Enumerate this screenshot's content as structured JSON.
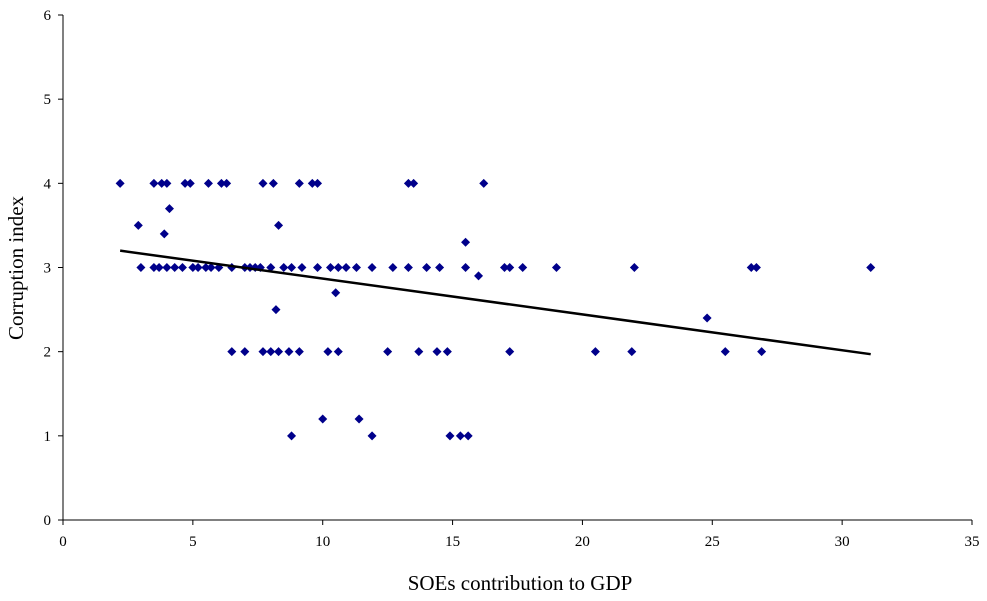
{
  "chart_data": {
    "type": "scatter",
    "xlabel": "SOEs contribution to GDP",
    "ylabel": "Corruption  index",
    "xlim": [
      0,
      35
    ],
    "ylim": [
      0,
      6
    ],
    "x_ticks": [
      "0",
      "5",
      "10",
      "15",
      "20",
      "25",
      "30",
      "35"
    ],
    "y_ticks": [
      "0",
      "1",
      "2",
      "3",
      "4",
      "5",
      "6"
    ],
    "grid": false,
    "legend": "none",
    "marker_color": "#00008B",
    "trendline_color": "#000000",
    "trendline": {
      "x": [
        2.2,
        31.1
      ],
      "y": [
        3.2,
        1.97
      ]
    },
    "points": [
      [
        2.2,
        4
      ],
      [
        3.5,
        4
      ],
      [
        3.8,
        4
      ],
      [
        4.0,
        4
      ],
      [
        4.7,
        4
      ],
      [
        4.9,
        4
      ],
      [
        5.6,
        4
      ],
      [
        6.1,
        4
      ],
      [
        6.3,
        4
      ],
      [
        7.7,
        4
      ],
      [
        8.1,
        4
      ],
      [
        9.1,
        4
      ],
      [
        9.6,
        4
      ],
      [
        9.8,
        4
      ],
      [
        13.3,
        4
      ],
      [
        13.5,
        4
      ],
      [
        16.2,
        4
      ],
      [
        4.1,
        3.7
      ],
      [
        2.9,
        3.5
      ],
      [
        8.3,
        3.5
      ],
      [
        3.9,
        3.4
      ],
      [
        15.5,
        3.3
      ],
      [
        3.0,
        3
      ],
      [
        3.5,
        3
      ],
      [
        3.7,
        3
      ],
      [
        4.0,
        3
      ],
      [
        4.3,
        3
      ],
      [
        4.6,
        3
      ],
      [
        5.0,
        3
      ],
      [
        5.2,
        3
      ],
      [
        5.5,
        3
      ],
      [
        5.7,
        3
      ],
      [
        6.0,
        3
      ],
      [
        6.5,
        3
      ],
      [
        7.0,
        3
      ],
      [
        7.2,
        3
      ],
      [
        7.4,
        3
      ],
      [
        7.6,
        3
      ],
      [
        8.0,
        3
      ],
      [
        8.5,
        3
      ],
      [
        8.8,
        3
      ],
      [
        9.2,
        3
      ],
      [
        9.8,
        3
      ],
      [
        10.3,
        3
      ],
      [
        10.6,
        3
      ],
      [
        10.9,
        3
      ],
      [
        11.3,
        3
      ],
      [
        11.9,
        3
      ],
      [
        12.7,
        3
      ],
      [
        13.3,
        3
      ],
      [
        14.0,
        3
      ],
      [
        14.5,
        3
      ],
      [
        15.5,
        3
      ],
      [
        17.0,
        3
      ],
      [
        17.2,
        3
      ],
      [
        17.7,
        3
      ],
      [
        19.0,
        3
      ],
      [
        22.0,
        3
      ],
      [
        26.5,
        3
      ],
      [
        26.7,
        3
      ],
      [
        31.1,
        3
      ],
      [
        16.0,
        2.9
      ],
      [
        10.5,
        2.7
      ],
      [
        8.2,
        2.5
      ],
      [
        24.8,
        2.4
      ],
      [
        6.5,
        2
      ],
      [
        7.0,
        2
      ],
      [
        7.7,
        2
      ],
      [
        8.0,
        2
      ],
      [
        8.3,
        2
      ],
      [
        8.7,
        2
      ],
      [
        9.1,
        2
      ],
      [
        10.2,
        2
      ],
      [
        10.6,
        2
      ],
      [
        12.5,
        2
      ],
      [
        13.7,
        2
      ],
      [
        14.4,
        2
      ],
      [
        14.8,
        2
      ],
      [
        17.2,
        2
      ],
      [
        20.5,
        2
      ],
      [
        21.9,
        2
      ],
      [
        25.5,
        2
      ],
      [
        26.9,
        2
      ],
      [
        10.0,
        1.2
      ],
      [
        11.4,
        1.2
      ],
      [
        8.8,
        1
      ],
      [
        11.9,
        1
      ],
      [
        14.9,
        1
      ],
      [
        15.3,
        1
      ],
      [
        15.6,
        1
      ]
    ]
  }
}
